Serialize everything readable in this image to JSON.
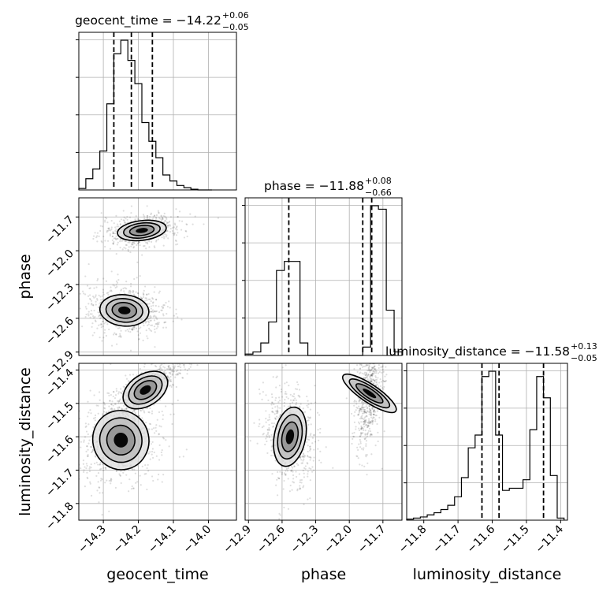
{
  "chart_data": {
    "type": "corner",
    "parameters": [
      "geocent_time",
      "phase",
      "luminosity_distance"
    ],
    "ranges": {
      "geocent_time": [
        -14.37,
        -13.92
      ],
      "phase": [
        -12.93,
        -11.53
      ],
      "luminosity_distance": [
        -11.85,
        -11.38
      ]
    },
    "summaries": [
      {
        "param": "geocent_time",
        "label": "geocent_time",
        "median": "−14.22",
        "plus": "+0.06",
        "minus": "−0.05",
        "quantiles": [
          -14.27,
          -14.22,
          -14.16
        ]
      },
      {
        "param": "phase",
        "label": "phase",
        "median": "−11.88",
        "plus": "+0.08",
        "minus": "−0.66",
        "quantiles": [
          -12.54,
          -11.88,
          -11.8
        ]
      },
      {
        "param": "luminosity_distance",
        "label": "luminosity_distance",
        "median": "−11.58",
        "plus": "+0.13",
        "minus": "−0.05",
        "quantiles": [
          -11.63,
          -11.58,
          -11.45
        ]
      }
    ],
    "titles": {
      "geocent_time": "geocent_time = −14.22",
      "phase": "phase = −11.88",
      "luminosity_distance": "luminosity_distance = −11.58"
    },
    "ticks": {
      "geocent_time": {
        "values": [
          -14.3,
          -14.2,
          -14.1,
          -14.0
        ],
        "labels": [
          "−14.3",
          "−14.2",
          "−14.1",
          "−14.0"
        ]
      },
      "phase": {
        "values": [
          -12.9,
          -12.6,
          -12.3,
          -12.0,
          -11.7
        ],
        "labels": [
          "−12.9",
          "−12.6",
          "−12.3",
          "−12.0",
          "−11.7"
        ]
      },
      "luminosity_distance": {
        "values": [
          -11.8,
          -11.7,
          -11.6,
          -11.5,
          -11.4
        ],
        "labels": [
          "−11.8",
          "−11.7",
          "−11.6",
          "−11.5",
          "−11.4"
        ]
      }
    },
    "histograms": {
      "geocent_time": {
        "edges": [
          -14.37,
          -14.35,
          -14.33,
          -14.31,
          -14.29,
          -14.27,
          -14.25,
          -14.23,
          -14.21,
          -14.19,
          -14.17,
          -14.15,
          -14.13,
          -14.11,
          -14.09,
          -14.07,
          -14.05,
          -14.03,
          -14.01,
          -13.99
        ],
        "counts": [
          2,
          15,
          28,
          52,
          115,
          182,
          200,
          173,
          142,
          90,
          65,
          43,
          20,
          12,
          6,
          3,
          1,
          0,
          0
        ]
      },
      "phase": {
        "edges": [
          -12.93,
          -12.86,
          -12.79,
          -12.72,
          -12.65,
          -12.58,
          -12.51,
          -12.44,
          -12.37,
          -12.3,
          -12.23,
          -12.16,
          -12.09,
          -12.02,
          -11.95,
          -11.88,
          -11.81,
          -11.74,
          -11.67,
          -11.6,
          -11.53
        ],
        "counts": [
          2,
          5,
          18,
          48,
          122,
          135,
          135,
          18,
          0,
          0,
          0,
          0,
          0,
          0,
          0,
          12,
          215,
          210,
          65,
          5
        ]
      },
      "luminosity_distance": {
        "edges": [
          -11.85,
          -11.83,
          -11.81,
          -11.79,
          -11.77,
          -11.75,
          -11.73,
          -11.71,
          -11.69,
          -11.67,
          -11.65,
          -11.63,
          -11.61,
          -11.59,
          -11.57,
          -11.55,
          -11.53,
          -11.51,
          -11.49,
          -11.47,
          -11.45,
          -11.43,
          -11.41,
          -11.39
        ],
        "counts": [
          1,
          2,
          3,
          5,
          7,
          10,
          14,
          22,
          40,
          68,
          80,
          135,
          140,
          80,
          28,
          30,
          30,
          38,
          85,
          135,
          115,
          42,
          2
        ]
      }
    },
    "clusters": {
      "phase_vs_geocent_time": [
        {
          "x": -14.19,
          "y": -11.82,
          "sx": 0.035,
          "sy": 0.045,
          "rho": 0.3,
          "weight": 0.5
        },
        {
          "x": -14.24,
          "y": -12.53,
          "sx": 0.035,
          "sy": 0.07,
          "rho": -0.15,
          "weight": 0.5
        }
      ],
      "luminosity_distance_vs_geocent_time": [
        {
          "x": -14.25,
          "y": -11.61,
          "sx": 0.04,
          "sy": 0.045,
          "rho": 0.2,
          "weight": 0.5
        },
        {
          "x": -14.18,
          "y": -11.46,
          "sx": 0.035,
          "sy": 0.03,
          "rho": 0.8,
          "weight": 0.5
        }
      ],
      "luminosity_distance_vs_phase": [
        {
          "x": -12.53,
          "y": -11.6,
          "sx": 0.07,
          "sy": 0.045,
          "rho": -0.1,
          "weight": 0.5
        },
        {
          "x": -11.82,
          "y": -11.47,
          "sx": 0.04,
          "sy": 0.05,
          "rho": 0.4,
          "weight": 0.5
        }
      ]
    },
    "grid": true,
    "contour_levels_sigma": [
      0.5,
      1.0,
      1.5,
      2.0
    ]
  }
}
